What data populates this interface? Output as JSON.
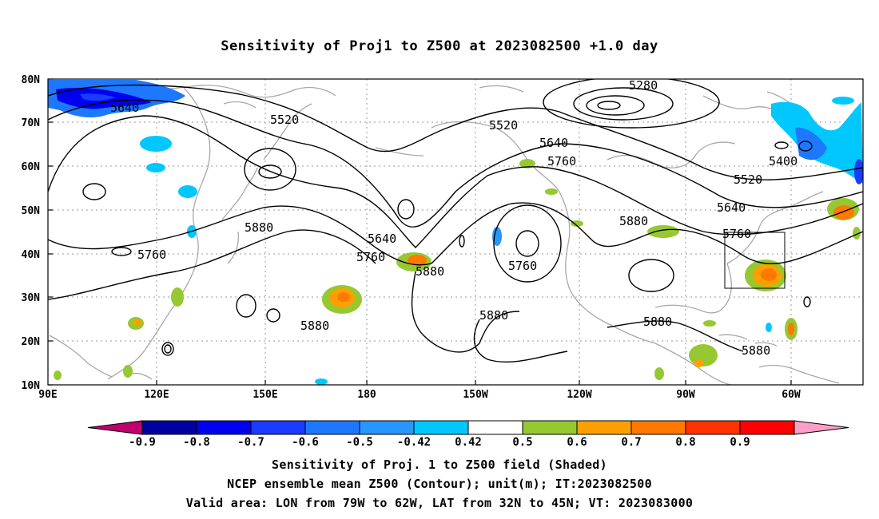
{
  "title": "Sensitivity of Proj1 to Z500 at 2023082500 +1.0 day",
  "axes": {
    "lat_labels": [
      "80N",
      "70N",
      "60N",
      "50N",
      "40N",
      "30N",
      "20N",
      "10N"
    ],
    "lon_labels": [
      "90E",
      "120E",
      "150E",
      "180",
      "150W",
      "120W",
      "90W",
      "60W"
    ]
  },
  "contour_labels": [
    "5280",
    "5400",
    "5520",
    "5520",
    "5520",
    "5640",
    "5640",
    "5640",
    "5640",
    "5760",
    "5760",
    "5760",
    "5760",
    "5760",
    "5880",
    "5880",
    "5880",
    "5880",
    "5880",
    "5880",
    "5880"
  ],
  "colorbar": {
    "labels": [
      "-0.9",
      "-0.8",
      "-0.7",
      "-0.6",
      "-0.5",
      "-0.42",
      "0.42",
      "0.5",
      "0.6",
      "0.7",
      "0.8",
      "0.9"
    ],
    "colors": [
      "#c0006e",
      "#0000a0",
      "#0000f0",
      "#1a3cff",
      "#1e78ff",
      "#2896ff",
      "#00c8ff",
      "#ffffff",
      "#96c832",
      "#ffa000",
      "#ff7800",
      "#ff3200",
      "#ff0000",
      "#ff9ec8"
    ]
  },
  "footer": {
    "line1": "Sensitivity of Proj. 1 to Z500 field (Shaded)",
    "line2": "NCEP ensemble mean Z500 (Contour); unit(m); IT:2023082500",
    "line3": "Valid area: LON from 79W to 62W, LAT from 32N to 45N; VT: 2023083000"
  }
}
